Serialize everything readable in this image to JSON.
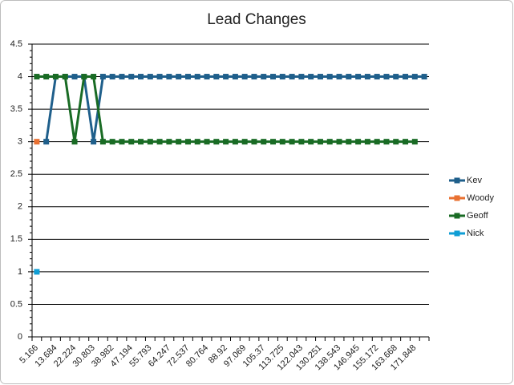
{
  "chart_data": {
    "type": "line",
    "title": "Lead Changes",
    "categories": [
      "5.166",
      null,
      "13.684",
      null,
      "22.224",
      null,
      "30.803",
      null,
      "38.982",
      null,
      "47.194",
      null,
      "55.793",
      null,
      "64.247",
      null,
      "72.537",
      null,
      "80.764",
      null,
      "88.92",
      null,
      "97.069",
      null,
      "105.37",
      null,
      "113.725",
      null,
      "122.043",
      null,
      "130.251",
      null,
      "138.543",
      null,
      "146.945",
      null,
      "155.172",
      null,
      "163.668",
      null,
      "171.848",
      null
    ],
    "series": [
      {
        "name": "Kev",
        "color": "#1f5f8b",
        "values": [
          null,
          3,
          4,
          4,
          4,
          4,
          3,
          4,
          4,
          4,
          4,
          4,
          4,
          4,
          4,
          4,
          4,
          4,
          4,
          4,
          4,
          4,
          4,
          4,
          4,
          4,
          4,
          4,
          4,
          4,
          4,
          4,
          4,
          4,
          4,
          4,
          4,
          4,
          4,
          4,
          4,
          4
        ]
      },
      {
        "name": "Woody",
        "color": "#e97132",
        "values": [
          3,
          null,
          null,
          null,
          null,
          null,
          null,
          null,
          null,
          null,
          null,
          null,
          null,
          null,
          null,
          null,
          null,
          null,
          null,
          null,
          null,
          null,
          null,
          null,
          null,
          null,
          null,
          null,
          null,
          null,
          null,
          null,
          null,
          null,
          null,
          null,
          null,
          null,
          null,
          null,
          null,
          null
        ]
      },
      {
        "name": "Geoff",
        "color": "#196b24",
        "values": [
          4,
          4,
          4,
          4,
          3,
          4,
          4,
          3,
          3,
          3,
          3,
          3,
          3,
          3,
          3,
          3,
          3,
          3,
          3,
          3,
          3,
          3,
          3,
          3,
          3,
          3,
          3,
          3,
          3,
          3,
          3,
          3,
          3,
          3,
          3,
          3,
          3,
          3,
          3,
          3,
          3,
          null
        ]
      },
      {
        "name": "Nick",
        "color": "#0f9ed5",
        "values": [
          1,
          null,
          null,
          null,
          null,
          null,
          null,
          null,
          null,
          null,
          null,
          null,
          null,
          null,
          null,
          null,
          null,
          null,
          null,
          null,
          null,
          null,
          null,
          null,
          null,
          null,
          null,
          null,
          null,
          null,
          null,
          null,
          null,
          null,
          null,
          null,
          null,
          null,
          null,
          null,
          null,
          null
        ]
      }
    ],
    "ylim": [
      0,
      4.5
    ],
    "yticks": [
      0,
      0.5,
      1,
      1.5,
      2,
      2.5,
      3,
      3.5,
      4,
      4.5
    ],
    "grid": true,
    "legend": "right"
  }
}
